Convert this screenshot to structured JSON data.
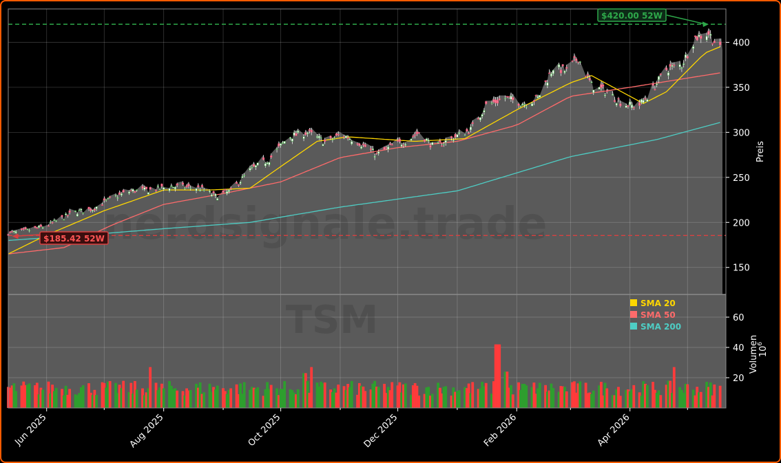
{
  "chart_data": [
    {
      "type": "candlestick",
      "watermark": "nerdsignale.trade",
      "ticker_watermark": "TSM",
      "ylabel": "Preis",
      "ylim": [
        120,
        437
      ],
      "yticks": [
        150,
        200,
        250,
        300,
        350,
        400
      ],
      "xticks": [
        "Jun 2025",
        "Aug 2025",
        "Oct 2025",
        "Dec 2025",
        "Feb 2026",
        "Apr 2026"
      ],
      "grid": true,
      "colors": {
        "up": "#2e9e2e",
        "down": "#ff3b3b",
        "area_fill": "#5a5a5a",
        "sma20": "#ffd700",
        "sma50": "#ff6b6b",
        "sma200": "#4ecdc4",
        "high_line": "#2ea84a",
        "low_line": "#d94040"
      },
      "annotations": {
        "high": {
          "label": "$420.00 52W",
          "value": 420.0
        },
        "low": {
          "label": "$185.42 52W",
          "value": 185.42
        }
      },
      "close_anchors": [
        [
          "2025-05-12",
          188
        ],
        [
          "2025-05-20",
          190
        ],
        [
          "2025-06-01",
          196
        ],
        [
          "2025-06-15",
          211
        ],
        [
          "2025-06-25",
          215
        ],
        [
          "2025-07-05",
          227
        ],
        [
          "2025-07-15",
          235
        ],
        [
          "2025-07-25",
          236
        ],
        [
          "2025-08-05",
          240
        ],
        [
          "2025-08-20",
          238
        ],
        [
          "2025-08-28",
          229
        ],
        [
          "2025-09-05",
          235
        ],
        [
          "2025-09-15",
          258
        ],
        [
          "2025-09-25",
          270
        ],
        [
          "2025-10-05",
          295
        ],
        [
          "2025-10-15",
          300
        ],
        [
          "2025-10-25",
          288
        ],
        [
          "2025-11-01",
          298
        ],
        [
          "2025-11-10",
          290
        ],
        [
          "2025-11-20",
          275
        ],
        [
          "2025-11-28",
          285
        ],
        [
          "2025-12-05",
          290
        ],
        [
          "2025-12-12",
          300
        ],
        [
          "2025-12-20",
          283
        ],
        [
          "2025-12-28",
          292
        ],
        [
          "2026-01-08",
          303
        ],
        [
          "2026-01-16",
          330
        ],
        [
          "2026-01-26",
          338
        ],
        [
          "2026-02-05",
          332
        ],
        [
          "2026-02-12",
          338
        ],
        [
          "2026-02-20",
          372
        ],
        [
          "2026-02-27",
          368
        ],
        [
          "2026-03-05",
          383
        ],
        [
          "2026-03-12",
          352
        ],
        [
          "2026-03-20",
          345
        ],
        [
          "2026-03-28",
          332
        ],
        [
          "2026-04-05",
          328
        ],
        [
          "2026-04-12",
          345
        ],
        [
          "2026-04-20",
          370
        ],
        [
          "2026-04-28",
          375
        ],
        [
          "2026-05-05",
          405
        ],
        [
          "2026-05-12",
          410
        ],
        [
          "2026-05-18",
          392
        ]
      ],
      "sma20_anchors": [
        [
          "2025-05-12",
          165
        ],
        [
          "2025-06-01",
          186
        ],
        [
          "2025-07-01",
          213
        ],
        [
          "2025-08-01",
          236
        ],
        [
          "2025-08-25",
          236
        ],
        [
          "2025-09-15",
          238
        ],
        [
          "2025-10-01",
          262
        ],
        [
          "2025-10-20",
          290
        ],
        [
          "2025-11-05",
          295
        ],
        [
          "2025-12-10",
          290
        ],
        [
          "2026-01-05",
          293
        ],
        [
          "2026-02-01",
          325
        ],
        [
          "2026-03-01",
          355
        ],
        [
          "2026-03-12",
          363
        ],
        [
          "2026-04-08",
          332
        ],
        [
          "2026-04-20",
          345
        ],
        [
          "2026-05-10",
          388
        ],
        [
          "2026-05-18",
          395
        ]
      ],
      "sma50_anchors": [
        [
          "2025-05-12",
          165
        ],
        [
          "2025-06-10",
          172
        ],
        [
          "2025-07-05",
          197
        ],
        [
          "2025-08-01",
          220
        ],
        [
          "2025-09-01",
          232
        ],
        [
          "2025-10-01",
          245
        ],
        [
          "2025-11-01",
          272
        ],
        [
          "2025-12-01",
          283
        ],
        [
          "2026-01-01",
          290
        ],
        [
          "2026-02-01",
          308
        ],
        [
          "2026-03-01",
          340
        ],
        [
          "2026-04-01",
          350
        ],
        [
          "2026-05-18",
          366
        ]
      ],
      "sma200_anchors": [
        [
          "2025-05-12",
          180
        ],
        [
          "2025-06-15",
          185
        ],
        [
          "2025-08-01",
          193
        ],
        [
          "2025-09-15",
          200
        ],
        [
          "2025-11-01",
          217
        ],
        [
          "2026-01-01",
          235
        ],
        [
          "2026-03-01",
          273
        ],
        [
          "2026-04-15",
          292
        ],
        [
          "2026-05-18",
          311
        ]
      ],
      "volume": {
        "ylabel": "Volumen",
        "unit": "10^6",
        "unit_exp": "6",
        "ylim": [
          0,
          75
        ],
        "yticks": [
          20,
          40,
          60
        ],
        "spikes": [
          [
            "2025-07-26",
            27
          ],
          [
            "2025-10-13",
            23
          ],
          [
            "2025-10-18",
            27
          ],
          [
            "2026-01-22",
            42
          ],
          [
            "2026-01-26",
            24
          ],
          [
            "2026-04-25",
            27
          ]
        ]
      },
      "legend": {
        "position": "inside volume panel, top-right",
        "items": [
          {
            "label": "SMA 20",
            "color": "#ffd700"
          },
          {
            "label": "SMA 50",
            "color": "#ff6b6b"
          },
          {
            "label": "SMA 200",
            "color": "#4ecdc4"
          }
        ]
      }
    }
  ]
}
